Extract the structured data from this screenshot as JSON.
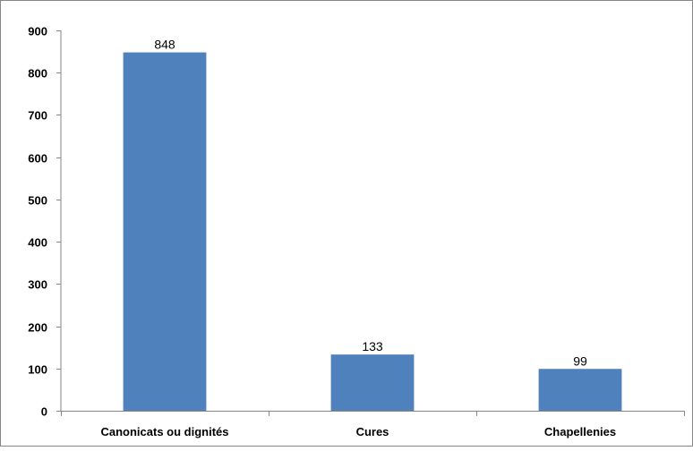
{
  "chart_data": {
    "type": "bar",
    "categories": [
      "Canonicats ou dignités",
      "Cures",
      "Chapellenies"
    ],
    "values": [
      848,
      133,
      99
    ],
    "data_labels": [
      "848",
      "133",
      "99"
    ],
    "title": "",
    "xlabel": "",
    "ylabel": "",
    "ylim": [
      0,
      900
    ],
    "yticks": [
      0,
      100,
      200,
      300,
      400,
      500,
      600,
      700,
      800,
      900
    ],
    "grid": false,
    "legend": "none",
    "bar_color": "#4f81bd"
  }
}
